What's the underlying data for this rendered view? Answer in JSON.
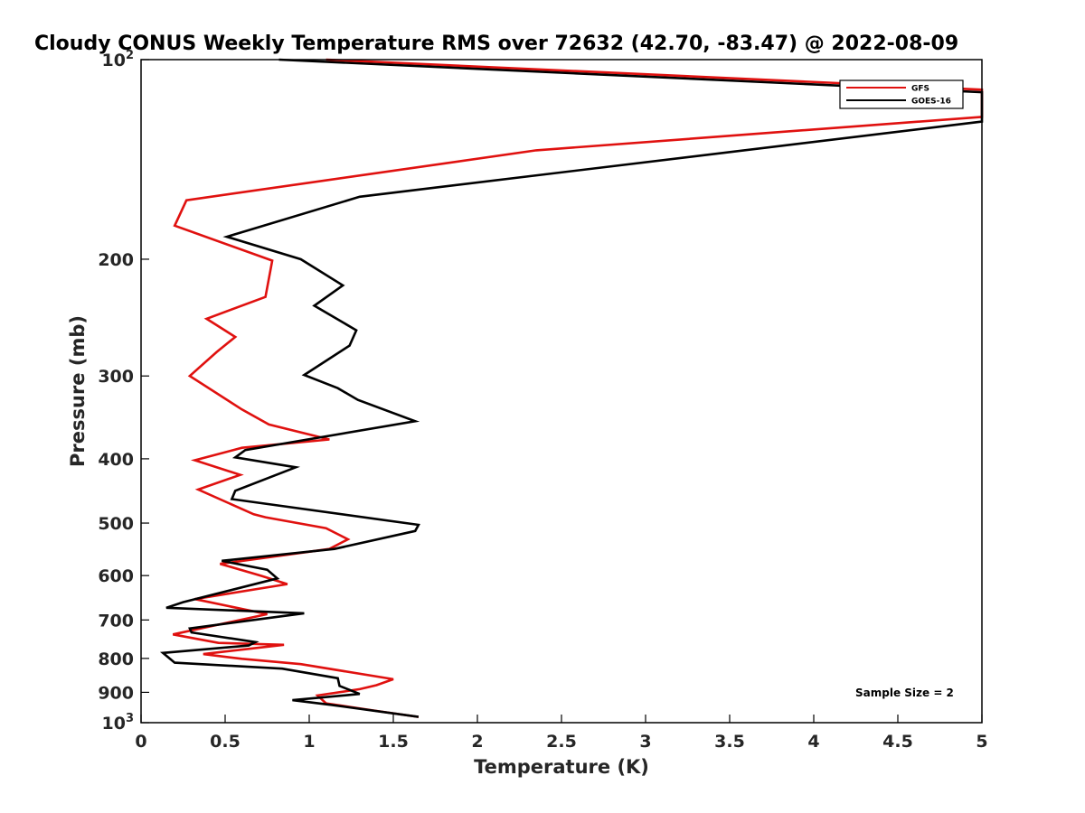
{
  "chart_data": {
    "type": "line",
    "title": "Cloudy CONUS Weekly Temperature RMS over 72632 (42.70, -83.47) @ 2022-08-09",
    "xlabel": "Temperature (K)",
    "ylabel": "Pressure (mb)",
    "xlim": [
      0,
      5
    ],
    "ylim": [
      100,
      1000
    ],
    "y_scale": "log",
    "y_reversed": true,
    "grid": false,
    "legend_position": "top-right",
    "x_ticks": [
      "0",
      "0.5",
      "1",
      "1.5",
      "2",
      "2.5",
      "3",
      "3.5",
      "4",
      "4.5",
      "5"
    ],
    "y_ticks": [
      {
        "base": "10",
        "exp": "2"
      },
      {
        "base": "200",
        "exp": ""
      },
      {
        "base": "300",
        "exp": ""
      },
      {
        "base": "400",
        "exp": ""
      },
      {
        "base": "500",
        "exp": ""
      },
      {
        "base": "600",
        "exp": ""
      },
      {
        "base": "700",
        "exp": ""
      },
      {
        "base": "800",
        "exp": ""
      },
      {
        "base": "900",
        "exp": ""
      },
      {
        "base": "10",
        "exp": "3"
      }
    ],
    "annotation": "Sample Size = 2",
    "series": [
      {
        "name": "GFS",
        "color": "#e0110f",
        "points": [
          [
            1.1,
            100
          ],
          [
            5.0,
            111
          ],
          [
            5.0,
            122
          ],
          [
            2.35,
            137
          ],
          [
            0.27,
            163
          ],
          [
            0.2,
            178
          ],
          [
            0.78,
            201
          ],
          [
            0.74,
            228
          ],
          [
            0.39,
            246
          ],
          [
            0.56,
            262
          ],
          [
            0.45,
            276
          ],
          [
            0.29,
            300
          ],
          [
            0.6,
            337
          ],
          [
            0.76,
            355
          ],
          [
            1.12,
            374
          ],
          [
            0.6,
            385
          ],
          [
            0.32,
            402
          ],
          [
            0.59,
            423
          ],
          [
            0.34,
            445
          ],
          [
            0.67,
            485
          ],
          [
            0.74,
            490
          ],
          [
            1.1,
            509
          ],
          [
            1.23,
            529
          ],
          [
            1.12,
            547
          ],
          [
            0.47,
            576
          ],
          [
            0.72,
            601
          ],
          [
            0.87,
            618
          ],
          [
            0.32,
            651
          ],
          [
            0.75,
            686
          ],
          [
            0.19,
            736
          ],
          [
            0.46,
            758
          ],
          [
            0.85,
            763
          ],
          [
            0.37,
            788
          ],
          [
            0.6,
            801
          ],
          [
            0.95,
            816
          ],
          [
            1.5,
            860
          ],
          [
            1.4,
            878
          ],
          [
            1.3,
            890
          ],
          [
            1.05,
            910
          ],
          [
            1.1,
            935
          ],
          [
            1.4,
            960
          ],
          [
            1.65,
            980
          ]
        ]
      },
      {
        "name": "GOES-16",
        "color": "#000000",
        "points": [
          [
            0.82,
            100
          ],
          [
            5.0,
            112
          ],
          [
            5.0,
            124
          ],
          [
            1.3,
            161
          ],
          [
            0.51,
            185
          ],
          [
            0.95,
            200
          ],
          [
            1.2,
            219
          ],
          [
            1.03,
            235
          ],
          [
            1.28,
            256
          ],
          [
            1.24,
            270
          ],
          [
            0.97,
            299
          ],
          [
            1.17,
            313
          ],
          [
            1.29,
            326
          ],
          [
            1.63,
            351
          ],
          [
            0.62,
            388
          ],
          [
            0.56,
            398
          ],
          [
            0.92,
            412
          ],
          [
            0.56,
            447
          ],
          [
            0.54,
            460
          ],
          [
            1.65,
            503
          ],
          [
            1.63,
            514
          ],
          [
            1.15,
            547
          ],
          [
            0.48,
            570
          ],
          [
            0.75,
            588
          ],
          [
            0.81,
            606
          ],
          [
            0.25,
            658
          ],
          [
            0.15,
            671
          ],
          [
            0.97,
            684
          ],
          [
            0.29,
            721
          ],
          [
            0.3,
            731
          ],
          [
            0.68,
            756
          ],
          [
            0.64,
            765
          ],
          [
            0.13,
            785
          ],
          [
            0.2,
            812
          ],
          [
            0.84,
            829
          ],
          [
            1.17,
            857
          ],
          [
            1.18,
            880
          ],
          [
            1.3,
            905
          ],
          [
            0.9,
            925
          ],
          [
            1.13,
            940
          ],
          [
            1.65,
            980
          ]
        ]
      }
    ]
  }
}
